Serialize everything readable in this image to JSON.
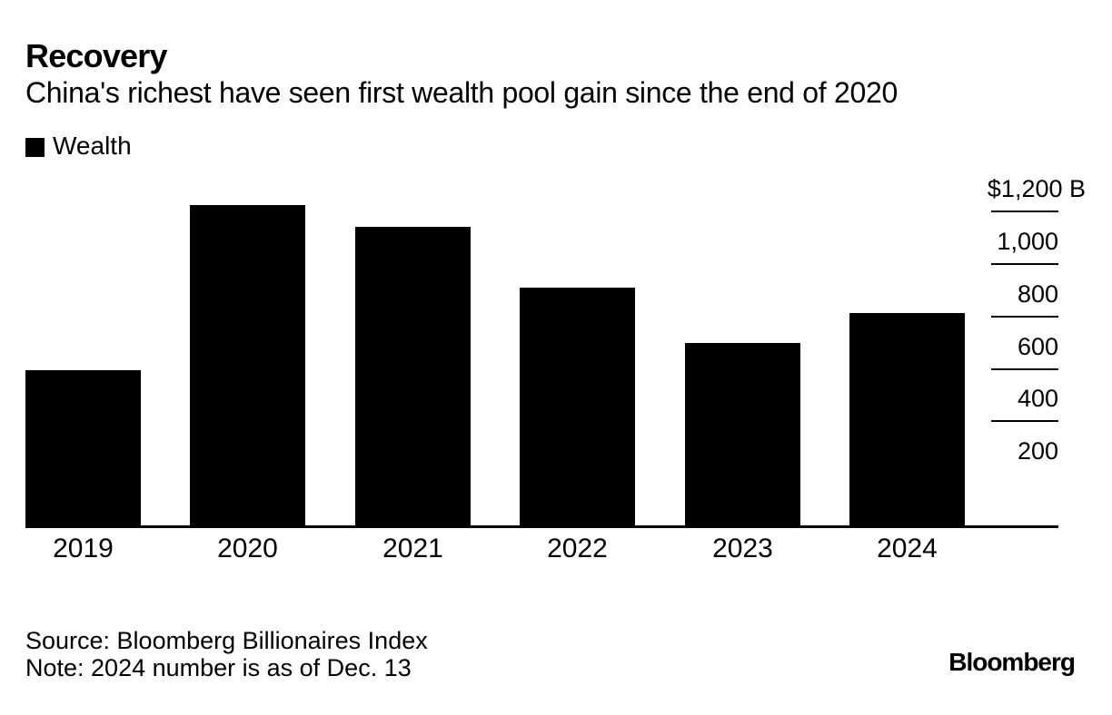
{
  "header": {
    "title": "Recovery",
    "subtitle": "China's richest have seen first wealth pool gain since the end of 2020"
  },
  "legend": {
    "items": [
      {
        "label": "Wealth",
        "color": "#000000"
      }
    ]
  },
  "chart_data": {
    "type": "bar",
    "title": "Recovery",
    "subtitle": "China's richest have seen first wealth pool gain since the end of 2020",
    "series_name": "Wealth",
    "unit": "billion USD",
    "categories": [
      "2019",
      "2020",
      "2021",
      "2022",
      "2023",
      "2024"
    ],
    "values": [
      590,
      1220,
      1140,
      905,
      695,
      810
    ],
    "ylim": [
      0,
      1300
    ],
    "yticks": [
      {
        "value": 1200,
        "label": "$1,200 B"
      },
      {
        "value": 1000,
        "label": "1,000"
      },
      {
        "value": 800,
        "label": "800"
      },
      {
        "value": 600,
        "label": "600"
      },
      {
        "value": 400,
        "label": "400"
      },
      {
        "value": 200,
        "label": "200"
      }
    ],
    "axis_side": "right",
    "grid": false,
    "bar_color": "#000000",
    "legend_position": "top-left"
  },
  "footer": {
    "source": "Source: Bloomberg Billionaires Index",
    "note": "Note: 2024 number is as of Dec. 13",
    "brand": "Bloomberg"
  }
}
